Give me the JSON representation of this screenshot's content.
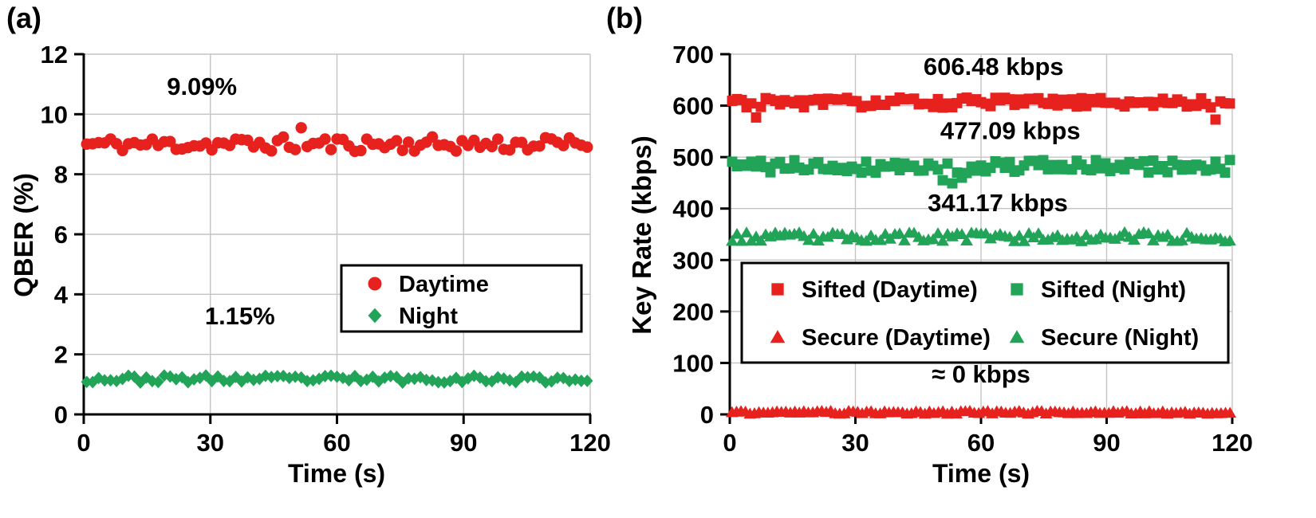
{
  "colors": {
    "red": "#e7211d",
    "green": "#21a457",
    "grid": "#c4c4c4",
    "axis": "#000000",
    "legend_border": "#000000",
    "background": "#ffffff",
    "text": "#000000"
  },
  "chart_data": [
    {
      "id": "qber-vs-time",
      "type": "scatter",
      "panel_label": "(a)",
      "xlabel": "Time (s)",
      "ylabel": "QBER (%)",
      "xlim": [
        0,
        120
      ],
      "ylim": [
        0,
        12
      ],
      "xticks": [
        0,
        30,
        60,
        90,
        120
      ],
      "yticks": [
        0,
        2,
        4,
        6,
        8,
        10,
        12
      ],
      "grid": true,
      "legend_position": "inside right",
      "legend_entries": [
        "Daytime",
        "Night"
      ],
      "series": [
        {
          "name": "Daytime",
          "marker": "circle",
          "color": "red",
          "mean": 9.0,
          "noise": 0.25,
          "n": 85,
          "seed": 11,
          "outliers": [
            {
              "index": 36,
              "value": 9.55
            }
          ],
          "annotation": {
            "text": "9.09%",
            "x": 28,
            "y": 10.65
          }
        },
        {
          "name": "Night",
          "marker": "diamond",
          "color": "green",
          "mean": 1.18,
          "noise": 0.12,
          "n": 85,
          "seed": 23,
          "annotation": {
            "text": "1.15%",
            "x": 37,
            "y": 3.0
          }
        }
      ]
    },
    {
      "id": "key-rate-vs-time",
      "type": "scatter",
      "panel_label": "(b)",
      "xlabel": "Time (s)",
      "ylabel": "Key Rate (kbps)",
      "xlim": [
        0,
        120
      ],
      "ylim": [
        0,
        700
      ],
      "xticks": [
        0,
        30,
        60,
        90,
        120
      ],
      "yticks": [
        0,
        100,
        200,
        300,
        400,
        500,
        600,
        700
      ],
      "grid": true,
      "legend_position": "inside bottom",
      "legend_entries": [
        "Sifted (Daytime)",
        "Sifted (Night)",
        "Secure (Daytime)",
        "Secure (Night)"
      ],
      "series": [
        {
          "name": "Sifted (Daytime)",
          "marker": "square",
          "color": "red",
          "mean": 606,
          "noise": 10,
          "n": 105,
          "seed": 31,
          "outliers": [
            {
              "index": 5,
              "value": 577
            },
            {
              "index": 101,
              "value": 573
            }
          ],
          "annotation": {
            "text": "606.48 kbps",
            "x": 63,
            "y": 660
          }
        },
        {
          "name": "Sifted (Night)",
          "marker": "square",
          "color": "green",
          "mean": 482,
          "noise": 13,
          "n": 105,
          "seed": 41,
          "outliers": [
            {
              "index": 44,
              "value": 455
            },
            {
              "index": 46,
              "value": 449
            },
            {
              "index": 48,
              "value": 460
            }
          ],
          "annotation": {
            "text": "477.09 kbps",
            "x": 67,
            "y": 535
          }
        },
        {
          "name": "Secure (Night)",
          "marker": "triangle",
          "color": "green",
          "mean": 345,
          "noise": 9,
          "n": 105,
          "seed": 53,
          "annotation": {
            "text": "341.17 kbps",
            "x": 64,
            "y": 395
          }
        },
        {
          "name": "Secure (Daytime)",
          "marker": "triangle",
          "color": "red",
          "mean": 4,
          "noise": 3,
          "n": 112,
          "seed": 61,
          "annotation": {
            "text": "≈ 0 kbps",
            "x": 60,
            "y": 62
          }
        }
      ]
    }
  ]
}
